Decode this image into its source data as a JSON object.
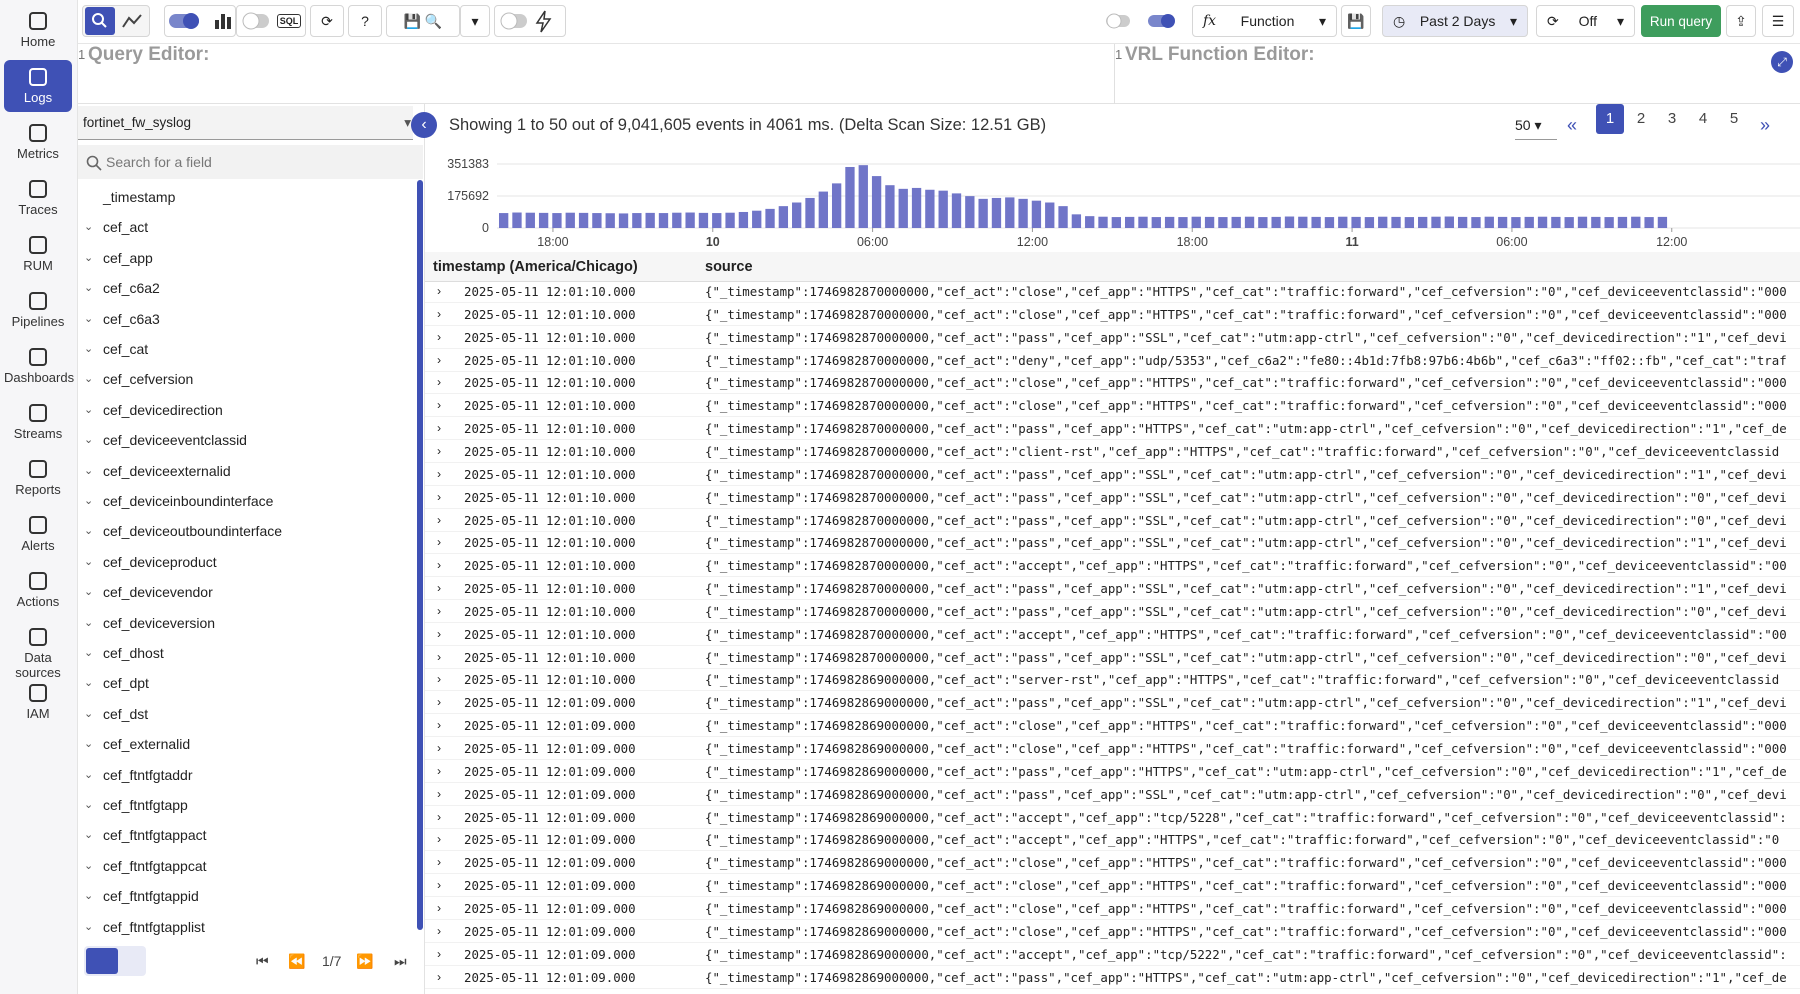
{
  "nav": [
    "Home",
    "Logs",
    "Metrics",
    "Traces",
    "RUM",
    "Pipelines",
    "Dashboards",
    "Streams",
    "Reports",
    "Alerts",
    "Actions",
    "Data sources",
    "IAM"
  ],
  "toolbar": {
    "sql": "SQL",
    "function": "Function",
    "time_range": "Past 2 Days",
    "refresh": "Off",
    "run": "Run query"
  },
  "editors": {
    "query_line": "1",
    "query": "Query Editor:",
    "vrl_line": "1",
    "vrl": "VRL Function Editor:"
  },
  "fields": {
    "stream": "fortinet_fw_syslog",
    "search_placeholder": "Search for a field",
    "items": [
      "_timestamp",
      "cef_act",
      "cef_app",
      "cef_c6a2",
      "cef_c6a3",
      "cef_cat",
      "cef_cefversion",
      "cef_devicedirection",
      "cef_deviceeventclassid",
      "cef_deviceexternalid",
      "cef_deviceinboundinterface",
      "cef_deviceoutboundinterface",
      "cef_deviceproduct",
      "cef_devicevendor",
      "cef_deviceversion",
      "cef_dhost",
      "cef_dpt",
      "cef_dst",
      "cef_externalid",
      "cef_ftntfgtaddr",
      "cef_ftntfgtapp",
      "cef_ftntfgtappact",
      "cef_ftntfgtappcat",
      "cef_ftntfgtappid",
      "cef_ftntfgtapplist"
    ],
    "page": "1/7"
  },
  "results": {
    "summary": "Showing 1 to 50 out of 9,041,605 events in 4061 ms. (Delta Scan Size: 12.51 GB)",
    "page_size": "50",
    "pages": [
      "1",
      "2",
      "3",
      "4",
      "5"
    ],
    "columns": [
      "timestamp (America/Chicago)",
      "source"
    ],
    "rows": [
      [
        "2025-05-11 12:01:10.000",
        "{\"_timestamp\":1746982870000000,\"cef_act\":\"close\",\"cef_app\":\"HTTPS\",\"cef_cat\":\"traffic:forward\",\"cef_cefversion\":\"0\",\"cef_deviceeventclassid\":\"000"
      ],
      [
        "2025-05-11 12:01:10.000",
        "{\"_timestamp\":1746982870000000,\"cef_act\":\"close\",\"cef_app\":\"HTTPS\",\"cef_cat\":\"traffic:forward\",\"cef_cefversion\":\"0\",\"cef_deviceeventclassid\":\"000"
      ],
      [
        "2025-05-11 12:01:10.000",
        "{\"_timestamp\":1746982870000000,\"cef_act\":\"pass\",\"cef_app\":\"SSL\",\"cef_cat\":\"utm:app-ctrl\",\"cef_cefversion\":\"0\",\"cef_devicedirection\":\"1\",\"cef_devi"
      ],
      [
        "2025-05-11 12:01:10.000",
        "{\"_timestamp\":1746982870000000,\"cef_act\":\"deny\",\"cef_app\":\"udp/5353\",\"cef_c6a2\":\"fe80::4b1d:7fb8:97b6:4b6b\",\"cef_c6a3\":\"ff02::fb\",\"cef_cat\":\"traf"
      ],
      [
        "2025-05-11 12:01:10.000",
        "{\"_timestamp\":1746982870000000,\"cef_act\":\"close\",\"cef_app\":\"HTTPS\",\"cef_cat\":\"traffic:forward\",\"cef_cefversion\":\"0\",\"cef_deviceeventclassid\":\"000"
      ],
      [
        "2025-05-11 12:01:10.000",
        "{\"_timestamp\":1746982870000000,\"cef_act\":\"close\",\"cef_app\":\"HTTPS\",\"cef_cat\":\"traffic:forward\",\"cef_cefversion\":\"0\",\"cef_deviceeventclassid\":\"000"
      ],
      [
        "2025-05-11 12:01:10.000",
        "{\"_timestamp\":1746982870000000,\"cef_act\":\"pass\",\"cef_app\":\"HTTPS\",\"cef_cat\":\"utm:app-ctrl\",\"cef_cefversion\":\"0\",\"cef_devicedirection\":\"1\",\"cef_de"
      ],
      [
        "2025-05-11 12:01:10.000",
        "{\"_timestamp\":1746982870000000,\"cef_act\":\"client-rst\",\"cef_app\":\"HTTPS\",\"cef_cat\":\"traffic:forward\",\"cef_cefversion\":\"0\",\"cef_deviceeventclassid"
      ],
      [
        "2025-05-11 12:01:10.000",
        "{\"_timestamp\":1746982870000000,\"cef_act\":\"pass\",\"cef_app\":\"SSL\",\"cef_cat\":\"utm:app-ctrl\",\"cef_cefversion\":\"0\",\"cef_devicedirection\":\"1\",\"cef_devi"
      ],
      [
        "2025-05-11 12:01:10.000",
        "{\"_timestamp\":1746982870000000,\"cef_act\":\"pass\",\"cef_app\":\"SSL\",\"cef_cat\":\"utm:app-ctrl\",\"cef_cefversion\":\"0\",\"cef_devicedirection\":\"0\",\"cef_devi"
      ],
      [
        "2025-05-11 12:01:10.000",
        "{\"_timestamp\":1746982870000000,\"cef_act\":\"pass\",\"cef_app\":\"SSL\",\"cef_cat\":\"utm:app-ctrl\",\"cef_cefversion\":\"0\",\"cef_devicedirection\":\"0\",\"cef_devi"
      ],
      [
        "2025-05-11 12:01:10.000",
        "{\"_timestamp\":1746982870000000,\"cef_act\":\"pass\",\"cef_app\":\"SSL\",\"cef_cat\":\"utm:app-ctrl\",\"cef_cefversion\":\"0\",\"cef_devicedirection\":\"1\",\"cef_devi"
      ],
      [
        "2025-05-11 12:01:10.000",
        "{\"_timestamp\":1746982870000000,\"cef_act\":\"accept\",\"cef_app\":\"HTTPS\",\"cef_cat\":\"traffic:forward\",\"cef_cefversion\":\"0\",\"cef_deviceeventclassid\":\"00"
      ],
      [
        "2025-05-11 12:01:10.000",
        "{\"_timestamp\":1746982870000000,\"cef_act\":\"pass\",\"cef_app\":\"SSL\",\"cef_cat\":\"utm:app-ctrl\",\"cef_cefversion\":\"0\",\"cef_devicedirection\":\"1\",\"cef_devi"
      ],
      [
        "2025-05-11 12:01:10.000",
        "{\"_timestamp\":1746982870000000,\"cef_act\":\"pass\",\"cef_app\":\"SSL\",\"cef_cat\":\"utm:app-ctrl\",\"cef_cefversion\":\"0\",\"cef_devicedirection\":\"0\",\"cef_devi"
      ],
      [
        "2025-05-11 12:01:10.000",
        "{\"_timestamp\":1746982870000000,\"cef_act\":\"accept\",\"cef_app\":\"HTTPS\",\"cef_cat\":\"traffic:forward\",\"cef_cefversion\":\"0\",\"cef_deviceeventclassid\":\"00"
      ],
      [
        "2025-05-11 12:01:10.000",
        "{\"_timestamp\":1746982870000000,\"cef_act\":\"pass\",\"cef_app\":\"SSL\",\"cef_cat\":\"utm:app-ctrl\",\"cef_cefversion\":\"0\",\"cef_devicedirection\":\"0\",\"cef_devi"
      ],
      [
        "2025-05-11 12:01:10.000",
        "{\"_timestamp\":1746982869000000,\"cef_act\":\"server-rst\",\"cef_app\":\"HTTPS\",\"cef_cat\":\"traffic:forward\",\"cef_cefversion\":\"0\",\"cef_deviceeventclassid"
      ],
      [
        "2025-05-11 12:01:09.000",
        "{\"_timestamp\":1746982869000000,\"cef_act\":\"pass\",\"cef_app\":\"SSL\",\"cef_cat\":\"utm:app-ctrl\",\"cef_cefversion\":\"0\",\"cef_devicedirection\":\"1\",\"cef_devi"
      ],
      [
        "2025-05-11 12:01:09.000",
        "{\"_timestamp\":1746982869000000,\"cef_act\":\"close\",\"cef_app\":\"HTTPS\",\"cef_cat\":\"traffic:forward\",\"cef_cefversion\":\"0\",\"cef_deviceeventclassid\":\"000"
      ],
      [
        "2025-05-11 12:01:09.000",
        "{\"_timestamp\":1746982869000000,\"cef_act\":\"close\",\"cef_app\":\"HTTPS\",\"cef_cat\":\"traffic:forward\",\"cef_cefversion\":\"0\",\"cef_deviceeventclassid\":\"000"
      ],
      [
        "2025-05-11 12:01:09.000",
        "{\"_timestamp\":1746982869000000,\"cef_act\":\"pass\",\"cef_app\":\"HTTPS\",\"cef_cat\":\"utm:app-ctrl\",\"cef_cefversion\":\"0\",\"cef_devicedirection\":\"1\",\"cef_de"
      ],
      [
        "2025-05-11 12:01:09.000",
        "{\"_timestamp\":1746982869000000,\"cef_act\":\"pass\",\"cef_app\":\"SSL\",\"cef_cat\":\"utm:app-ctrl\",\"cef_cefversion\":\"0\",\"cef_devicedirection\":\"0\",\"cef_devi"
      ],
      [
        "2025-05-11 12:01:09.000",
        "{\"_timestamp\":1746982869000000,\"cef_act\":\"accept\",\"cef_app\":\"tcp/5228\",\"cef_cat\":\"traffic:forward\",\"cef_cefversion\":\"0\",\"cef_deviceeventclassid\":"
      ],
      [
        "2025-05-11 12:01:09.000",
        "{\"_timestamp\":1746982869000000,\"cef_act\":\"accept\",\"cef_app\":\"HTTPS\",\"cef_cat\":\"traffic:forward\",\"cef_cefversion\":\"0\",\"cef_deviceeventclassid\":\"0"
      ],
      [
        "2025-05-11 12:01:09.000",
        "{\"_timestamp\":1746982869000000,\"cef_act\":\"close\",\"cef_app\":\"HTTPS\",\"cef_cat\":\"traffic:forward\",\"cef_cefversion\":\"0\",\"cef_deviceeventclassid\":\"000"
      ],
      [
        "2025-05-11 12:01:09.000",
        "{\"_timestamp\":1746982869000000,\"cef_act\":\"close\",\"cef_app\":\"HTTPS\",\"cef_cat\":\"traffic:forward\",\"cef_cefversion\":\"0\",\"cef_deviceeventclassid\":\"000"
      ],
      [
        "2025-05-11 12:01:09.000",
        "{\"_timestamp\":1746982869000000,\"cef_act\":\"close\",\"cef_app\":\"HTTPS\",\"cef_cat\":\"traffic:forward\",\"cef_cefversion\":\"0\",\"cef_deviceeventclassid\":\"000"
      ],
      [
        "2025-05-11 12:01:09.000",
        "{\"_timestamp\":1746982869000000,\"cef_act\":\"close\",\"cef_app\":\"HTTPS\",\"cef_cat\":\"traffic:forward\",\"cef_cefversion\":\"0\",\"cef_deviceeventclassid\":\"000"
      ],
      [
        "2025-05-11 12:01:09.000",
        "{\"_timestamp\":1746982869000000,\"cef_act\":\"accept\",\"cef_app\":\"tcp/5222\",\"cef_cat\":\"traffic:forward\",\"cef_cefversion\":\"0\",\"cef_deviceeventclassid\":"
      ],
      [
        "2025-05-11 12:01:09.000",
        "{\"_timestamp\":1746982869000000,\"cef_act\":\"pass\",\"cef_app\":\"HTTPS\",\"cef_cat\":\"utm:app-ctrl\",\"cef_cefversion\":\"0\",\"cef_devicedirection\":\"1\",\"cef_de"
      ]
    ]
  },
  "chart_data": {
    "type": "bar",
    "color": "#7075c8",
    "grid": true,
    "values": [
      82000,
      85000,
      84000,
      83000,
      82000,
      84000,
      83000,
      82000,
      81000,
      80000,
      82000,
      83000,
      82000,
      84000,
      85000,
      83000,
      82000,
      84000,
      88000,
      95000,
      105000,
      120000,
      140000,
      165000,
      200000,
      245000,
      335000,
      345000,
      285000,
      235000,
      215000,
      220000,
      210000,
      205000,
      190000,
      175000,
      160000,
      165000,
      168000,
      160000,
      150000,
      140000,
      120000,
      75000,
      65000,
      62000,
      60000,
      61000,
      62000,
      60000,
      61000,
      60000,
      62000,
      61000,
      60000,
      61000,
      62000,
      60000,
      61000,
      63000,
      62000,
      61000,
      60000,
      62000,
      61000,
      60000,
      62000,
      61000,
      60000,
      61000,
      62000,
      63000,
      61000,
      60000,
      62000,
      61000,
      60000,
      61000,
      62000,
      61000,
      60000,
      62000,
      61000,
      60000,
      61000,
      62000,
      60000,
      61000
    ],
    "ylim": [
      0,
      351383
    ],
    "yticks": [
      0,
      175692,
      351383
    ],
    "xlim": [
      0,
      94
    ],
    "xticks": [
      {
        "value": 4.2,
        "label": "18:00"
      },
      {
        "value": 16.2,
        "label": "10"
      },
      {
        "value": 28.2,
        "label": "06:00"
      },
      {
        "value": 40.2,
        "label": "12:00"
      },
      {
        "value": 52.2,
        "label": "18:00"
      },
      {
        "value": 64.2,
        "label": "11"
      },
      {
        "value": 76.2,
        "label": "06:00"
      },
      {
        "value": 88.2,
        "label": "12:00"
      }
    ]
  }
}
